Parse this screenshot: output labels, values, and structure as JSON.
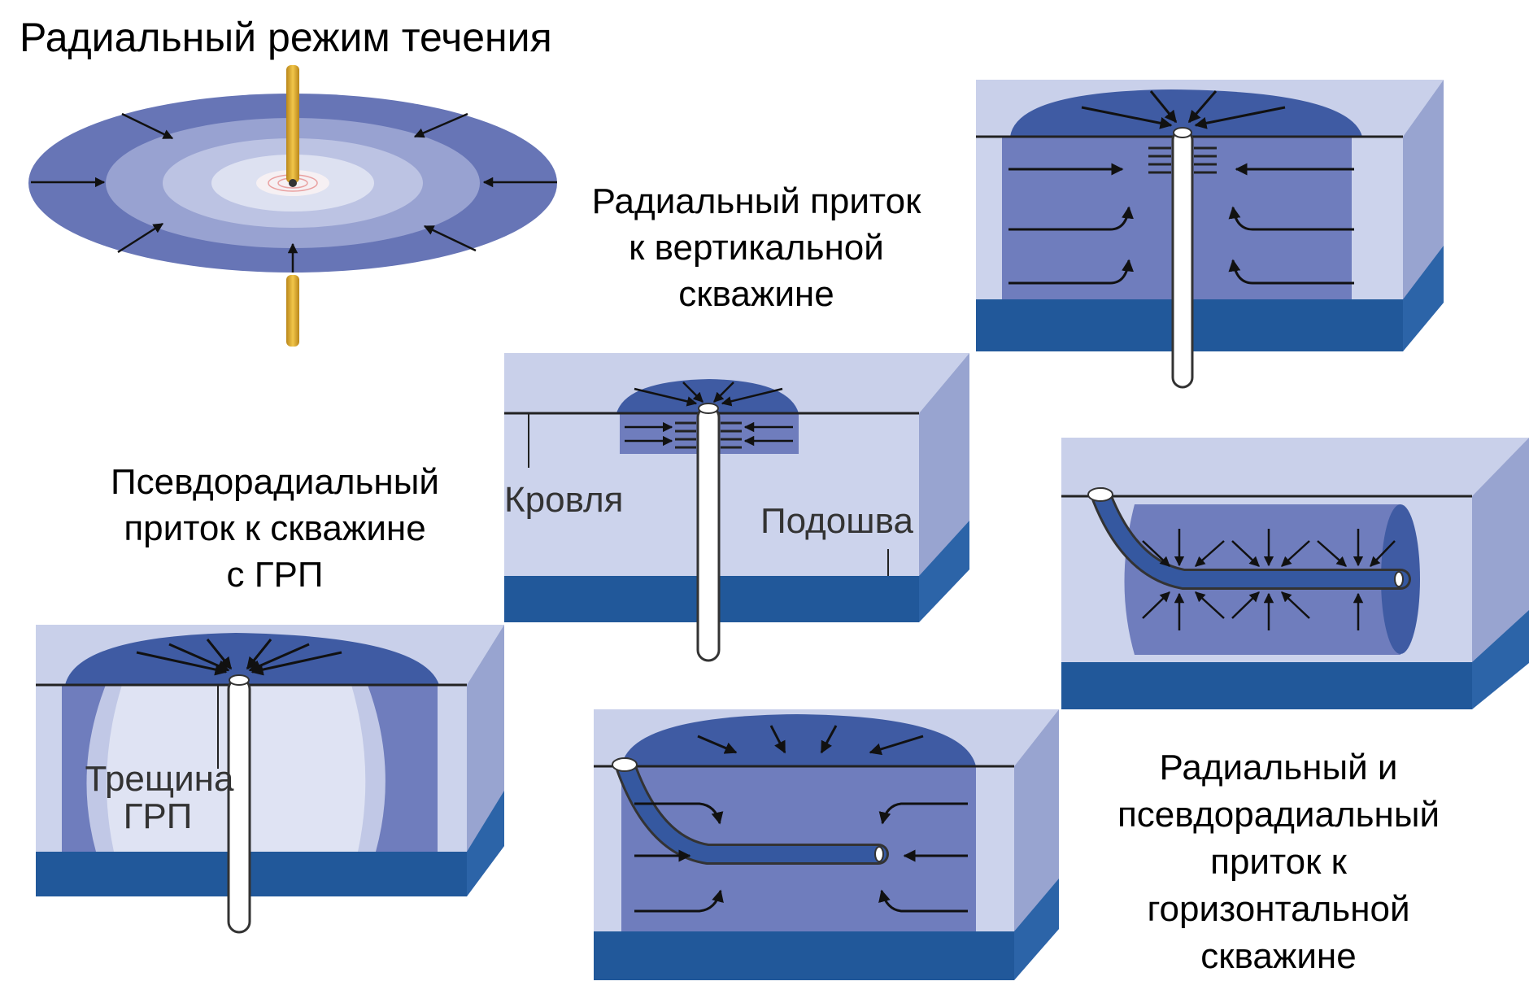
{
  "colors": {
    "light": "#d0d6ec",
    "mid": "#7a86c2",
    "dark": "#3c5aa2",
    "sideLight": "#98a4d0",
    "base": "#21589a",
    "baseSide": "#2c64a8",
    "rod": "#e3b233",
    "rodDark": "#a77a12",
    "label": "#333333"
  },
  "captions": {
    "radial_mode": "Радиальный режим течения",
    "vertical_l1": "Радиальный приток",
    "vertical_l2": "к вертикальной",
    "vertical_l3": "скважине",
    "frac_l1": "Псевдорадиальный",
    "frac_l2": "приток к скважине",
    "frac_l3": "с ГРП",
    "horizontal_l1": "Радиальный и",
    "horizontal_l2": "псевдорадиальный",
    "horizontal_l3": "приток к",
    "horizontal_l4": "горизонтальной",
    "horizontal_l5": "скважине"
  },
  "labels": {
    "roof": "Кровля",
    "bottom": "Подошва",
    "fracture_l1": "Трещина",
    "fracture_l2": "ГРП"
  },
  "icons": [
    "disk-flow-icon",
    "vertical-well-block-icon",
    "fractured-well-block-icon",
    "horizontal-well-block-icon"
  ]
}
